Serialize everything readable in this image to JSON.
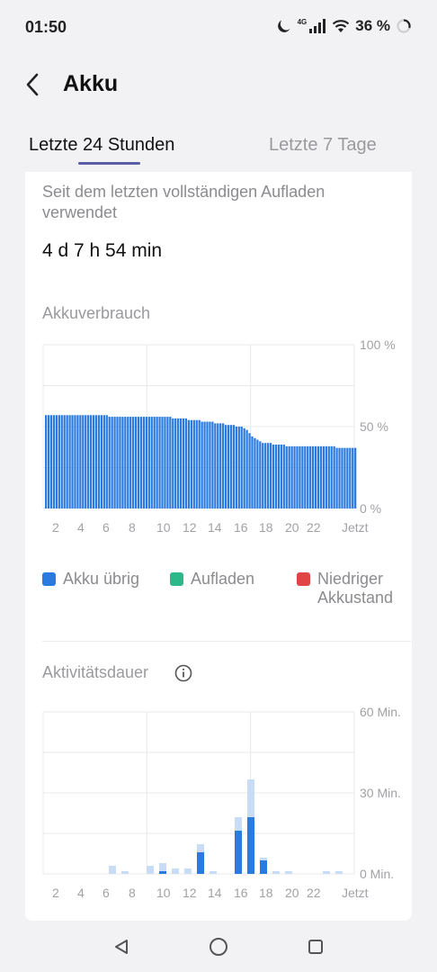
{
  "status": {
    "time": "01:50",
    "network": "4G",
    "battery_pct": "36 %",
    "icons": [
      "moon-icon",
      "signal-icon",
      "wifi-icon",
      "battery-ring-icon"
    ]
  },
  "header": {
    "title": "Akku",
    "back_icon": "chevron-left-icon"
  },
  "tabs": [
    {
      "label": "Letzte 24 Stunden",
      "active": true
    },
    {
      "label": "Letzte 7 Tage",
      "active": false
    }
  ],
  "summary": {
    "label": "Seit dem letzten vollständigen Aufladen verwendet",
    "value": "4 d 7 h 54 min"
  },
  "usage_title": "Akkuverbrauch",
  "legend": [
    {
      "label": "Akku übrig",
      "color": "#2a7ae0"
    },
    {
      "label": "Aufladen",
      "color": "#2db88a"
    },
    {
      "label": "Niedriger Akkustand",
      "color": "#e04444"
    }
  ],
  "activity_title": "Aktivitätsdauer",
  "activity_info_icon": "info-icon",
  "colors": {
    "bar": "#2a7ae0",
    "bar_light": "#c9dcf6",
    "grid": "#e8e8eb",
    "tab_indicator": "#5b5fa8"
  },
  "chart_data": [
    {
      "type": "bar",
      "title": "Akkuverbrauch",
      "ytick_labels": [
        "100 %",
        "50 %",
        "0 %"
      ],
      "xtick_labels": [
        "2",
        "4",
        "6",
        "8",
        "10",
        "12",
        "14",
        "16",
        "18",
        "20",
        "22",
        "Jetzt"
      ],
      "ylim": [
        0,
        100
      ],
      "series": [
        {
          "name": "Akku übrig",
          "values": [
            57,
            57,
            57,
            57,
            57,
            57,
            57,
            57,
            57,
            57,
            57,
            57,
            57,
            57,
            57,
            57,
            57,
            57,
            57,
            57,
            57,
            57,
            57,
            57,
            56,
            56,
            56,
            56,
            56,
            56,
            56,
            56,
            56,
            56,
            56,
            56,
            56,
            56,
            56,
            56,
            56,
            56,
            56,
            56,
            56,
            56,
            56,
            56,
            55,
            55,
            55,
            55,
            55,
            55,
            54,
            54,
            54,
            54,
            54,
            53,
            53,
            53,
            53,
            53,
            52,
            52,
            52,
            52,
            51,
            51,
            51,
            51,
            50,
            50,
            50,
            49,
            48,
            46,
            44,
            43,
            42,
            41,
            40,
            40,
            40,
            40,
            39,
            39,
            39,
            39,
            39,
            38,
            38,
            38,
            38,
            38,
            38,
            38,
            38,
            38,
            38,
            38,
            38,
            38,
            38,
            38,
            38,
            38,
            38,
            38,
            37,
            37,
            37,
            37,
            37,
            37,
            37,
            37
          ]
        }
      ]
    },
    {
      "type": "bar",
      "title": "Aktivitätsdauer",
      "ytick_labels": [
        "60 Min.",
        "30 Min.",
        "0 Min."
      ],
      "xtick_labels": [
        "2",
        "4",
        "6",
        "8",
        "10",
        "12",
        "14",
        "16",
        "18",
        "20",
        "22",
        "Jetzt"
      ],
      "ylim": [
        0,
        60
      ],
      "x": [
        1,
        2,
        3,
        4,
        5,
        6,
        7,
        8,
        9,
        10,
        11,
        12,
        13,
        14,
        15,
        16,
        17,
        18,
        19,
        20,
        21,
        22,
        23,
        24
      ],
      "series": [
        {
          "name": "",
          "values": [
            0,
            0,
            0,
            0,
            0,
            0,
            0,
            0,
            0,
            1,
            0,
            0,
            8,
            0,
            0,
            16,
            21,
            5,
            0,
            0,
            0,
            0,
            0,
            0
          ]
        },
        {
          "name": "",
          "values": [
            0,
            0,
            0,
            0,
            0,
            3,
            1,
            0,
            3,
            4,
            2,
            2,
            11,
            1,
            0,
            21,
            35,
            6,
            1,
            1,
            0,
            0,
            1,
            1
          ]
        }
      ]
    }
  ]
}
